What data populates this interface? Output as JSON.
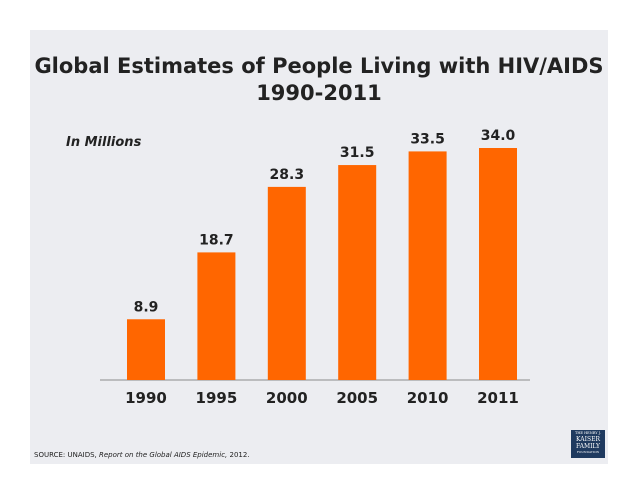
{
  "chart_data": {
    "type": "bar",
    "title_line1": "Global Estimates of People Living with HIV/AIDS",
    "title_line2": "1990-2011",
    "units_label": "In Millions",
    "categories": [
      "1990",
      "1995",
      "2000",
      "2005",
      "2010",
      "2011"
    ],
    "values": [
      8.9,
      18.7,
      28.3,
      31.5,
      33.5,
      34.0
    ],
    "value_labels": [
      "8.9",
      "18.7",
      "28.3",
      "31.5",
      "33.5",
      "34.0"
    ],
    "bar_color": "#ff6600",
    "xlabel": "",
    "ylabel": "",
    "ylim": [
      0,
      35
    ],
    "grid": false
  },
  "source": {
    "prefix": "SOURCE: UNAIDS,",
    "report": "Report on the Global AIDS Epidemic,",
    "year": "2012."
  },
  "logo": {
    "top": "THE HENRY J.",
    "name1": "KAISER",
    "name2": "FAMILY",
    "bottom": "FOUNDATION"
  }
}
